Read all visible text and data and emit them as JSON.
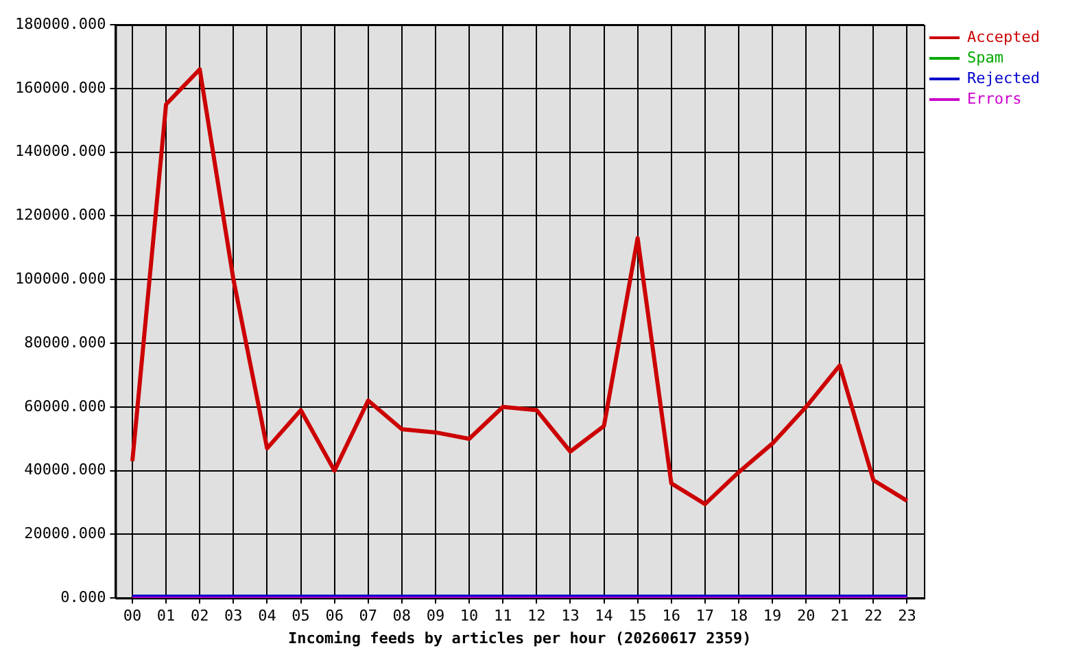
{
  "chart_data": {
    "type": "line",
    "xlabel": "Incoming feeds by articles per hour (20260617 2359)",
    "categories": [
      "00",
      "01",
      "02",
      "03",
      "04",
      "05",
      "06",
      "07",
      "08",
      "09",
      "10",
      "11",
      "12",
      "13",
      "14",
      "15",
      "16",
      "17",
      "18",
      "19",
      "20",
      "21",
      "22",
      "23"
    ],
    "series": [
      {
        "name": "Accepted",
        "color": "#cc0000",
        "values": [
          43000,
          155000,
          166000,
          100000,
          47000,
          59000,
          40000,
          62000,
          53000,
          52000,
          50000,
          60000,
          59000,
          46000,
          54000,
          113000,
          36000,
          29500,
          39500,
          48500,
          60000,
          73000,
          37000,
          30500
        ]
      },
      {
        "name": "Spam",
        "color": "#00aa00",
        "values": [
          null,
          null,
          null,
          null,
          null,
          null,
          null,
          null,
          null,
          null,
          null,
          null,
          null,
          null,
          null,
          null,
          null,
          null,
          null,
          null,
          null,
          null,
          null,
          null
        ]
      },
      {
        "name": "Rejected",
        "color": "#0000cc",
        "values": [
          0,
          0,
          0,
          0,
          0,
          0,
          0,
          0,
          0,
          0,
          0,
          0,
          0,
          0,
          0,
          0,
          0,
          0,
          0,
          0,
          0,
          0,
          0,
          0
        ]
      },
      {
        "name": "Errors",
        "color": "#cc00cc",
        "values": [
          0,
          0,
          0,
          0,
          0,
          0,
          0,
          0,
          0,
          0,
          0,
          0,
          0,
          0,
          0,
          0,
          0,
          0,
          0,
          0,
          0,
          0,
          0,
          0
        ]
      }
    ],
    "ylim": [
      0,
      180000
    ],
    "yticks": [
      {
        "value": 0,
        "label": "0.000"
      },
      {
        "value": 20000,
        "label": "20000.000"
      },
      {
        "value": 40000,
        "label": "40000.000"
      },
      {
        "value": 60000,
        "label": "60000.000"
      },
      {
        "value": 80000,
        "label": "80000.000"
      },
      {
        "value": 100000,
        "label": "100000.000"
      },
      {
        "value": 120000,
        "label": "120000.000"
      },
      {
        "value": 140000,
        "label": "140000.000"
      },
      {
        "value": 160000,
        "label": "160000.000"
      },
      {
        "value": 180000,
        "label": "180000.000"
      }
    ],
    "grid": true,
    "legend": "top right",
    "marker": "none",
    "line_style": "solid"
  }
}
